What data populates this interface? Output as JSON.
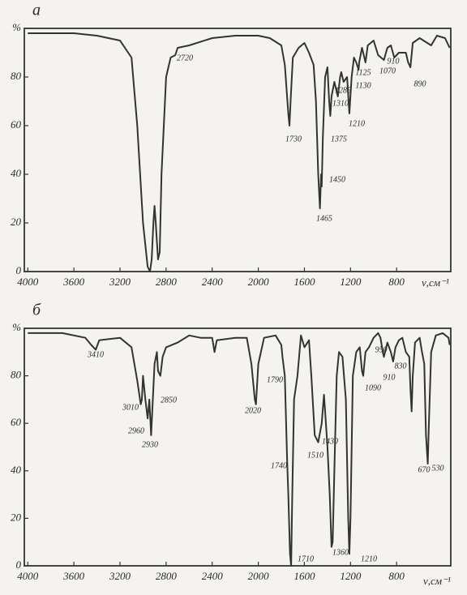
{
  "chart_data": [
    {
      "type": "line",
      "title": "а",
      "x_label": "ν,см⁻¹",
      "color": "#333333",
      "xlim": [
        4030,
        330
      ],
      "ylim": [
        0,
        100
      ],
      "xticks": [
        4000,
        3600,
        3200,
        2800,
        2400,
        2000,
        1600,
        1200,
        800
      ],
      "yticks": [
        0,
        20,
        40,
        60,
        80,
        {
          "value": 100,
          "label": "%"
        }
      ],
      "x": [
        4000,
        3600,
        3400,
        3200,
        3100,
        3050,
        3000,
        2960,
        2940,
        2925,
        2910,
        2900,
        2890,
        2870,
        2855,
        2840,
        2800,
        2760,
        2720,
        2700,
        2600,
        2400,
        2200,
        2000,
        1900,
        1800,
        1770,
        1740,
        1730,
        1720,
        1700,
        1650,
        1600,
        1560,
        1520,
        1500,
        1480,
        1465,
        1455,
        1450,
        1440,
        1420,
        1400,
        1385,
        1375,
        1365,
        1340,
        1310,
        1290,
        1280,
        1260,
        1230,
        1210,
        1190,
        1170,
        1150,
        1130,
        1125,
        1100,
        1080,
        1070,
        1050,
        1000,
        960,
        910,
        880,
        850,
        820,
        780,
        720,
        700,
        680,
        660,
        600,
        500,
        450,
        380,
        340
      ],
      "values": [
        98,
        98,
        97,
        95,
        88,
        60,
        20,
        2,
        0,
        5,
        20,
        27,
        20,
        5,
        8,
        40,
        80,
        88,
        89,
        92,
        93,
        96,
        97,
        97,
        96,
        93,
        85,
        65,
        60,
        70,
        88,
        92,
        94,
        90,
        85,
        70,
        40,
        26,
        40,
        35,
        55,
        80,
        84,
        70,
        64,
        72,
        78,
        72,
        80,
        82,
        78,
        80,
        65,
        80,
        88,
        86,
        83,
        86,
        92,
        88,
        86,
        93,
        95,
        89,
        87,
        92,
        93,
        88,
        90,
        90,
        86,
        84,
        94,
        96,
        93,
        97,
        96,
        92
      ],
      "annotations": [
        "2720",
        "1730",
        "1375",
        "1465",
        "1450",
        "1310",
        "1285",
        "1210",
        "1125",
        "1130",
        "1070",
        "910",
        "890"
      ]
    },
    {
      "type": "line",
      "title": "б",
      "x_label": "ν,см⁻¹",
      "color": "#333333",
      "xlim": [
        4030,
        330
      ],
      "ylim": [
        0,
        100
      ],
      "xticks": [
        4000,
        3600,
        3200,
        2800,
        2400,
        2000,
        1600,
        1200,
        800
      ],
      "yticks": [
        0,
        20,
        40,
        60,
        80,
        {
          "value": 100,
          "label": "%"
        }
      ],
      "x": [
        4000,
        3700,
        3500,
        3450,
        3410,
        3380,
        3200,
        3100,
        3050,
        3020,
        3010,
        3000,
        2980,
        2960,
        2945,
        2930,
        2915,
        2900,
        2880,
        2870,
        2850,
        2830,
        2800,
        2700,
        2600,
        2500,
        2400,
        2380,
        2360,
        2200,
        2100,
        2060,
        2030,
        2020,
        2000,
        1950,
        1850,
        1800,
        1790,
        1770,
        1750,
        1740,
        1725,
        1715,
        1705,
        1690,
        1660,
        1630,
        1600,
        1560,
        1540,
        1510,
        1480,
        1450,
        1430,
        1420,
        1400,
        1380,
        1365,
        1355,
        1340,
        1320,
        1300,
        1270,
        1240,
        1220,
        1210,
        1200,
        1180,
        1150,
        1120,
        1100,
        1090,
        1070,
        1040,
        1000,
        960,
        940,
        920,
        910,
        880,
        850,
        830,
        810,
        780,
        750,
        720,
        690,
        680,
        670,
        660,
        640,
        600,
        580,
        560,
        545,
        530,
        520,
        500,
        460,
        400,
        350,
        340
      ],
      "values": [
        98,
        98,
        96,
        93,
        91,
        95,
        96,
        92,
        78,
        68,
        70,
        80,
        70,
        62,
        70,
        55,
        70,
        85,
        90,
        82,
        80,
        88,
        92,
        94,
        97,
        96,
        96,
        90,
        95,
        96,
        96,
        85,
        70,
        68,
        85,
        96,
        97,
        93,
        88,
        80,
        45,
        30,
        5,
        0,
        30,
        70,
        80,
        97,
        92,
        95,
        80,
        55,
        52,
        60,
        72,
        65,
        50,
        30,
        8,
        10,
        40,
        80,
        90,
        88,
        70,
        20,
        5,
        20,
        80,
        90,
        92,
        82,
        80,
        90,
        92,
        96,
        98,
        96,
        90,
        88,
        94,
        90,
        86,
        92,
        95,
        96,
        90,
        88,
        75,
        65,
        80,
        94,
        96,
        90,
        85,
        55,
        43,
        60,
        90,
        97,
        98,
        96,
        93
      ],
      "annotations": [
        "3410",
        "3010",
        "2960",
        "2930",
        "2850",
        "2020",
        "1790",
        "1740",
        "1710",
        "1510",
        "1430",
        "1360",
        "1210",
        "1090",
        "950",
        "910",
        "830",
        "670",
        "530"
      ]
    }
  ]
}
